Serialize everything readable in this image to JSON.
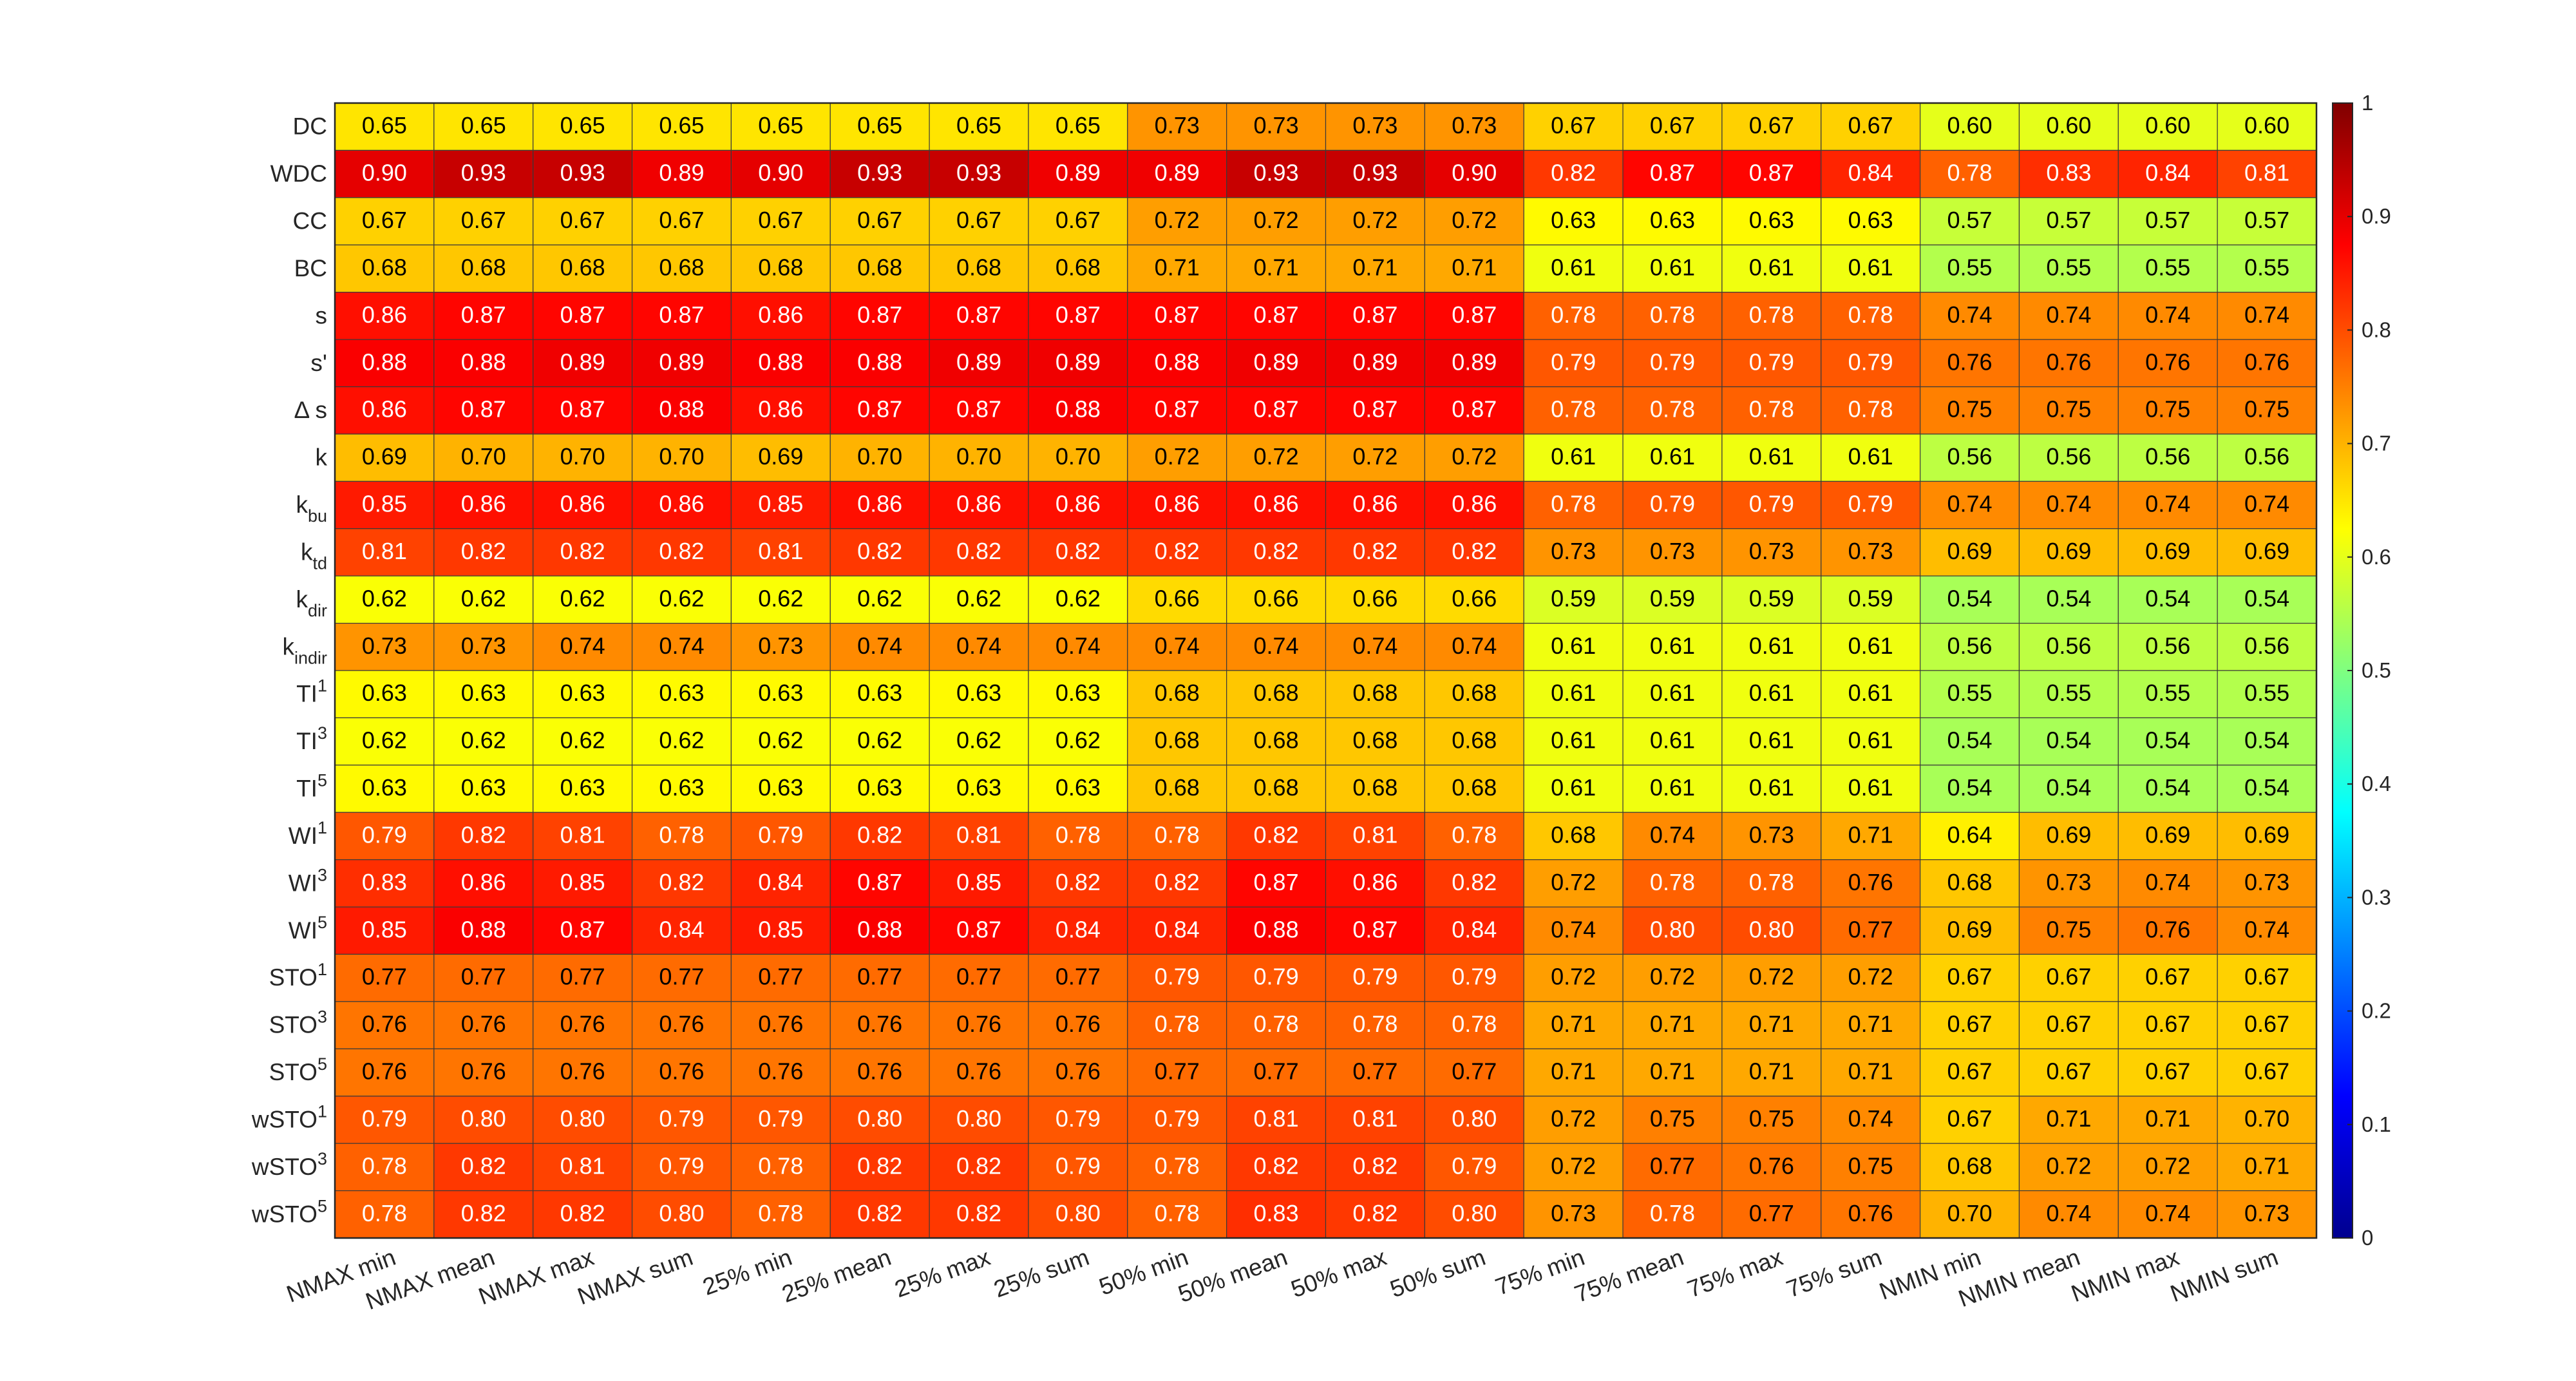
{
  "chart_data": {
    "type": "heatmap",
    "title": "",
    "xlabel": "",
    "ylabel": "",
    "columns": [
      "NMAX min",
      "NMAX mean",
      "NMAX max",
      "NMAX sum",
      "25% min",
      "25% mean",
      "25% max",
      "25% sum",
      "50% min",
      "50% mean",
      "50% max",
      "50% sum",
      "75% min",
      "75% mean",
      "75% max",
      "75% sum",
      "NMIN min",
      "NMIN mean",
      "NMIN max",
      "NMIN sum"
    ],
    "rows": [
      {
        "base": "DC",
        "sub": "",
        "sup": ""
      },
      {
        "base": "WDC",
        "sub": "",
        "sup": ""
      },
      {
        "base": "CC",
        "sub": "",
        "sup": ""
      },
      {
        "base": "BC",
        "sub": "",
        "sup": ""
      },
      {
        "base": "s",
        "sub": "",
        "sup": ""
      },
      {
        "base": "s'",
        "sub": "",
        "sup": ""
      },
      {
        "base": "Δ s",
        "sub": "",
        "sup": ""
      },
      {
        "base": "k",
        "sub": "",
        "sup": ""
      },
      {
        "base": "k",
        "sub": "bu",
        "sup": ""
      },
      {
        "base": "k",
        "sub": "td",
        "sup": ""
      },
      {
        "base": "k",
        "sub": "dir",
        "sup": ""
      },
      {
        "base": "k",
        "sub": "indir",
        "sup": ""
      },
      {
        "base": "TI",
        "sub": "",
        "sup": "1"
      },
      {
        "base": "TI",
        "sub": "",
        "sup": "3"
      },
      {
        "base": "TI",
        "sub": "",
        "sup": "5"
      },
      {
        "base": "WI",
        "sub": "",
        "sup": "1"
      },
      {
        "base": "WI",
        "sub": "",
        "sup": "3"
      },
      {
        "base": "WI",
        "sub": "",
        "sup": "5"
      },
      {
        "base": "STO",
        "sub": "",
        "sup": "1"
      },
      {
        "base": "STO",
        "sub": "",
        "sup": "3"
      },
      {
        "base": "STO",
        "sub": "",
        "sup": "5"
      },
      {
        "base": "wSTO",
        "sub": "",
        "sup": "1"
      },
      {
        "base": "wSTO",
        "sub": "",
        "sup": "3"
      },
      {
        "base": "wSTO",
        "sub": "",
        "sup": "5"
      }
    ],
    "values": [
      [
        0.65,
        0.65,
        0.65,
        0.65,
        0.65,
        0.65,
        0.65,
        0.65,
        0.73,
        0.73,
        0.73,
        0.73,
        0.67,
        0.67,
        0.67,
        0.67,
        0.6,
        0.6,
        0.6,
        0.6
      ],
      [
        0.9,
        0.93,
        0.93,
        0.89,
        0.9,
        0.93,
        0.93,
        0.89,
        0.89,
        0.93,
        0.93,
        0.9,
        0.82,
        0.87,
        0.87,
        0.84,
        0.78,
        0.83,
        0.84,
        0.81
      ],
      [
        0.67,
        0.67,
        0.67,
        0.67,
        0.67,
        0.67,
        0.67,
        0.67,
        0.72,
        0.72,
        0.72,
        0.72,
        0.63,
        0.63,
        0.63,
        0.63,
        0.57,
        0.57,
        0.57,
        0.57
      ],
      [
        0.68,
        0.68,
        0.68,
        0.68,
        0.68,
        0.68,
        0.68,
        0.68,
        0.71,
        0.71,
        0.71,
        0.71,
        0.61,
        0.61,
        0.61,
        0.61,
        0.55,
        0.55,
        0.55,
        0.55
      ],
      [
        0.86,
        0.87,
        0.87,
        0.87,
        0.86,
        0.87,
        0.87,
        0.87,
        0.87,
        0.87,
        0.87,
        0.87,
        0.78,
        0.78,
        0.78,
        0.78,
        0.74,
        0.74,
        0.74,
        0.74
      ],
      [
        0.88,
        0.88,
        0.89,
        0.89,
        0.88,
        0.88,
        0.89,
        0.89,
        0.88,
        0.89,
        0.89,
        0.89,
        0.79,
        0.79,
        0.79,
        0.79,
        0.76,
        0.76,
        0.76,
        0.76
      ],
      [
        0.86,
        0.87,
        0.87,
        0.88,
        0.86,
        0.87,
        0.87,
        0.88,
        0.87,
        0.87,
        0.87,
        0.87,
        0.78,
        0.78,
        0.78,
        0.78,
        0.75,
        0.75,
        0.75,
        0.75
      ],
      [
        0.69,
        0.7,
        0.7,
        0.7,
        0.69,
        0.7,
        0.7,
        0.7,
        0.72,
        0.72,
        0.72,
        0.72,
        0.61,
        0.61,
        0.61,
        0.61,
        0.56,
        0.56,
        0.56,
        0.56
      ],
      [
        0.85,
        0.86,
        0.86,
        0.86,
        0.85,
        0.86,
        0.86,
        0.86,
        0.86,
        0.86,
        0.86,
        0.86,
        0.78,
        0.79,
        0.79,
        0.79,
        0.74,
        0.74,
        0.74,
        0.74
      ],
      [
        0.81,
        0.82,
        0.82,
        0.82,
        0.81,
        0.82,
        0.82,
        0.82,
        0.82,
        0.82,
        0.82,
        0.82,
        0.73,
        0.73,
        0.73,
        0.73,
        0.69,
        0.69,
        0.69,
        0.69
      ],
      [
        0.62,
        0.62,
        0.62,
        0.62,
        0.62,
        0.62,
        0.62,
        0.62,
        0.66,
        0.66,
        0.66,
        0.66,
        0.59,
        0.59,
        0.59,
        0.59,
        0.54,
        0.54,
        0.54,
        0.54
      ],
      [
        0.73,
        0.73,
        0.74,
        0.74,
        0.73,
        0.74,
        0.74,
        0.74,
        0.74,
        0.74,
        0.74,
        0.74,
        0.61,
        0.61,
        0.61,
        0.61,
        0.56,
        0.56,
        0.56,
        0.56
      ],
      [
        0.63,
        0.63,
        0.63,
        0.63,
        0.63,
        0.63,
        0.63,
        0.63,
        0.68,
        0.68,
        0.68,
        0.68,
        0.61,
        0.61,
        0.61,
        0.61,
        0.55,
        0.55,
        0.55,
        0.55
      ],
      [
        0.62,
        0.62,
        0.62,
        0.62,
        0.62,
        0.62,
        0.62,
        0.62,
        0.68,
        0.68,
        0.68,
        0.68,
        0.61,
        0.61,
        0.61,
        0.61,
        0.54,
        0.54,
        0.54,
        0.54
      ],
      [
        0.63,
        0.63,
        0.63,
        0.63,
        0.63,
        0.63,
        0.63,
        0.63,
        0.68,
        0.68,
        0.68,
        0.68,
        0.61,
        0.61,
        0.61,
        0.61,
        0.54,
        0.54,
        0.54,
        0.54
      ],
      [
        0.79,
        0.82,
        0.81,
        0.78,
        0.79,
        0.82,
        0.81,
        0.78,
        0.78,
        0.82,
        0.81,
        0.78,
        0.68,
        0.74,
        0.73,
        0.71,
        0.64,
        0.69,
        0.69,
        0.69
      ],
      [
        0.83,
        0.86,
        0.85,
        0.82,
        0.84,
        0.87,
        0.85,
        0.82,
        0.82,
        0.87,
        0.86,
        0.82,
        0.72,
        0.78,
        0.78,
        0.76,
        0.68,
        0.73,
        0.74,
        0.73
      ],
      [
        0.85,
        0.88,
        0.87,
        0.84,
        0.85,
        0.88,
        0.87,
        0.84,
        0.84,
        0.88,
        0.87,
        0.84,
        0.74,
        0.8,
        0.8,
        0.77,
        0.69,
        0.75,
        0.76,
        0.74
      ],
      [
        0.77,
        0.77,
        0.77,
        0.77,
        0.77,
        0.77,
        0.77,
        0.77,
        0.79,
        0.79,
        0.79,
        0.79,
        0.72,
        0.72,
        0.72,
        0.72,
        0.67,
        0.67,
        0.67,
        0.67
      ],
      [
        0.76,
        0.76,
        0.76,
        0.76,
        0.76,
        0.76,
        0.76,
        0.76,
        0.78,
        0.78,
        0.78,
        0.78,
        0.71,
        0.71,
        0.71,
        0.71,
        0.67,
        0.67,
        0.67,
        0.67
      ],
      [
        0.76,
        0.76,
        0.76,
        0.76,
        0.76,
        0.76,
        0.76,
        0.76,
        0.77,
        0.77,
        0.77,
        0.77,
        0.71,
        0.71,
        0.71,
        0.71,
        0.67,
        0.67,
        0.67,
        0.67
      ],
      [
        0.79,
        0.8,
        0.8,
        0.79,
        0.79,
        0.8,
        0.8,
        0.79,
        0.79,
        0.81,
        0.81,
        0.8,
        0.72,
        0.75,
        0.75,
        0.74,
        0.67,
        0.71,
        0.71,
        0.7
      ],
      [
        0.78,
        0.82,
        0.81,
        0.79,
        0.78,
        0.82,
        0.82,
        0.79,
        0.78,
        0.82,
        0.82,
        0.79,
        0.72,
        0.77,
        0.76,
        0.75,
        0.68,
        0.72,
        0.72,
        0.71
      ],
      [
        0.78,
        0.82,
        0.82,
        0.8,
        0.78,
        0.82,
        0.82,
        0.8,
        0.78,
        0.83,
        0.82,
        0.8,
        0.73,
        0.78,
        0.77,
        0.76,
        0.7,
        0.74,
        0.74,
        0.73
      ]
    ],
    "colormap": "jet",
    "clim": [
      0,
      1
    ],
    "colorbar": {
      "ticks": [
        0,
        0.1,
        0.2,
        0.3,
        0.4,
        0.5,
        0.6,
        0.7,
        0.8,
        0.9,
        1
      ],
      "tick_labels": [
        "0",
        "0.1",
        "0.2",
        "0.3",
        "0.4",
        "0.5",
        "0.6",
        "0.7",
        "0.8",
        "0.9",
        "1"
      ],
      "placement": "right"
    },
    "value_format": "2 decimals",
    "grid": false
  }
}
